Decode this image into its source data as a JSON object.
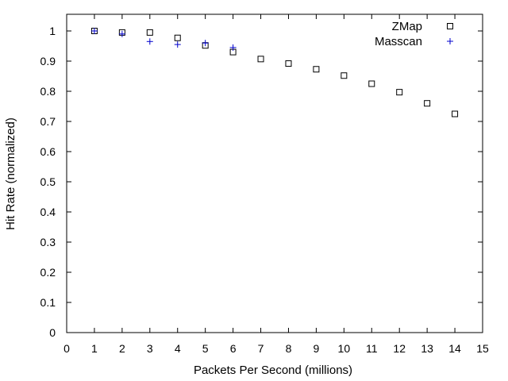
{
  "chart_data": {
    "type": "scatter",
    "title": "",
    "xlabel": "Packets Per Second (millions)",
    "ylabel": "Hit Rate (normalized)",
    "xlim": [
      0,
      15
    ],
    "ylim": [
      0,
      1.05
    ],
    "xticks": [
      0,
      1,
      2,
      3,
      4,
      5,
      6,
      7,
      8,
      9,
      10,
      11,
      12,
      13,
      14,
      15
    ],
    "yticks": [
      0,
      0.1,
      0.2,
      0.3,
      0.4,
      0.5,
      0.6,
      0.7,
      0.8,
      0.9,
      1
    ],
    "ytick_labels": [
      "0",
      "0.1",
      "0.2",
      "0.3",
      "0.4",
      "0.5",
      "0.6",
      "0.7",
      "0.8",
      "0.9",
      "1"
    ],
    "grid": false,
    "legend_position": "top-right",
    "series": [
      {
        "name": "ZMap",
        "marker": "square",
        "color": "#000000",
        "x": [
          1,
          2,
          3,
          4,
          5,
          6,
          7,
          8,
          9,
          10,
          11,
          12,
          13,
          14
        ],
        "y": [
          1.0,
          0.995,
          0.995,
          0.977,
          0.952,
          0.93,
          0.907,
          0.892,
          0.873,
          0.852,
          0.825,
          0.797,
          0.76,
          0.725
        ]
      },
      {
        "name": "Masscan",
        "marker": "plus",
        "color": "#0000cc",
        "x": [
          1,
          2,
          3,
          4,
          5,
          6
        ],
        "y": [
          1.0,
          0.99,
          0.965,
          0.955,
          0.96,
          0.945
        ]
      }
    ]
  }
}
